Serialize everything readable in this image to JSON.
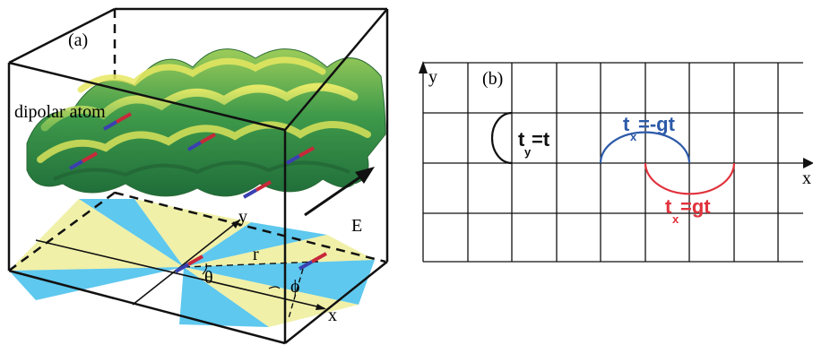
{
  "panel_a": {
    "label": "(a)",
    "atom_label": "dipolar atom",
    "field_label": "E",
    "axis_x": "x",
    "axis_y": "y",
    "r_label": "r",
    "theta_label": "θ",
    "phi_label": "ϕ",
    "colors": {
      "surface_dark": "#2f7f3f",
      "surface_light": "#e8e55e",
      "sector_blue": "#5ec8ee",
      "sector_yellow": "#f0f0a8",
      "dipole_red": "#c8283a",
      "dipole_blue": "#3a40b0"
    }
  },
  "panel_b": {
    "label": "(b)",
    "axis_x": "x",
    "axis_y": "y",
    "hop_y": {
      "main": "t",
      "sub": "y",
      "rest": "=t",
      "color": "#111111"
    },
    "hop_x_top": {
      "main": "t",
      "sub": "x",
      "rest": "=-gt",
      "color": "#2c5aa8"
    },
    "hop_x_bottom": {
      "main": "t",
      "sub": "x",
      "rest": "=gt",
      "color": "#e0323c"
    }
  }
}
